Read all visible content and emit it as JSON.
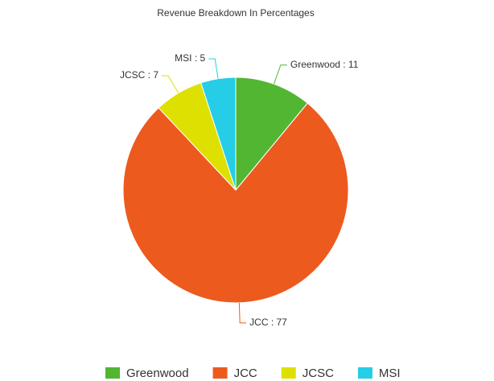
{
  "chart_data": {
    "type": "pie",
    "title": "Revenue Breakdown In Percentages",
    "categories": [
      "Greenwood",
      "JCC",
      "JCSC",
      "MSI"
    ],
    "values": [
      11,
      77,
      7,
      5
    ],
    "value_labels": [
      "Greenwood : 11",
      "JCC : 77",
      "JCSC : 7",
      "MSI : 5"
    ],
    "colors": [
      "#52b632",
      "#ec5a1e",
      "#dde000",
      "#25cde6"
    ]
  }
}
